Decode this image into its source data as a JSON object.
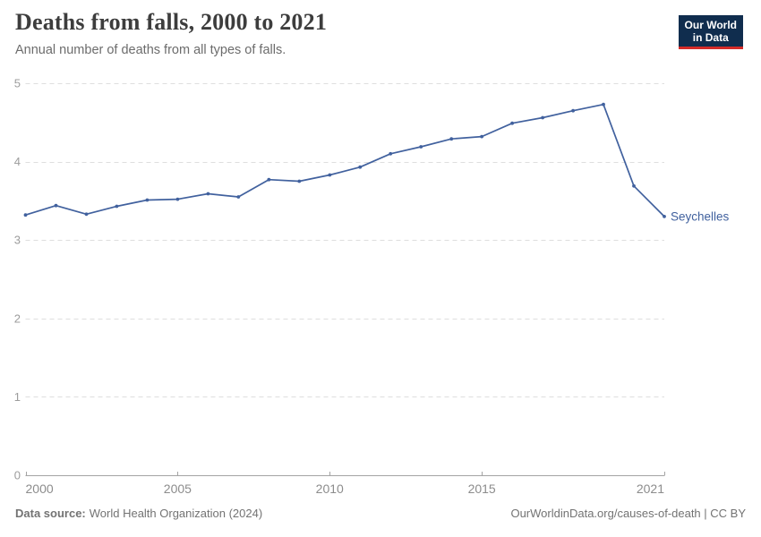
{
  "header": {
    "title": "Deaths from falls, 2000 to 2021",
    "subtitle": "Annual number of deaths from all types of falls.",
    "logo_line1": "Our World",
    "logo_line2": "in Data"
  },
  "chart_data": {
    "type": "line",
    "title": "Deaths from falls, 2000 to 2021",
    "xlabel": "",
    "ylabel": "",
    "x": [
      2000,
      2001,
      2002,
      2003,
      2004,
      2005,
      2006,
      2007,
      2008,
      2009,
      2010,
      2011,
      2012,
      2013,
      2014,
      2015,
      2016,
      2017,
      2018,
      2019,
      2020,
      2021
    ],
    "series": [
      {
        "name": "Seychelles",
        "color": "#41619e",
        "values": [
          3.32,
          3.44,
          3.33,
          3.43,
          3.51,
          3.52,
          3.59,
          3.55,
          3.77,
          3.75,
          3.83,
          3.93,
          4.1,
          4.19,
          4.29,
          4.32,
          4.49,
          4.56,
          4.65,
          4.73,
          3.69,
          3.3
        ]
      }
    ],
    "ylim": [
      0,
      5
    ],
    "yticks": [
      0,
      1,
      2,
      3,
      4,
      5
    ],
    "xticks": [
      2000,
      2005,
      2010,
      2015,
      2021
    ],
    "grid": "horizontal-dashed",
    "legend_position": "end-of-line-label"
  },
  "footer": {
    "source_label": "Data source:",
    "source_text": "World Health Organization (2024)",
    "credit": "OurWorldinData.org/causes-of-death | CC BY"
  },
  "colors": {
    "accent_line": "#41619e",
    "logo_bg": "#102d4e",
    "logo_red": "#d42b28",
    "grid": "#dedede",
    "axis": "#a3a3a3",
    "y_tick_label": "#9c9c9c",
    "x_tick_label": "#8c8c8c",
    "title": "#3d3d3d",
    "subtitle": "#6c6c6c",
    "footer_text": "#737373"
  }
}
